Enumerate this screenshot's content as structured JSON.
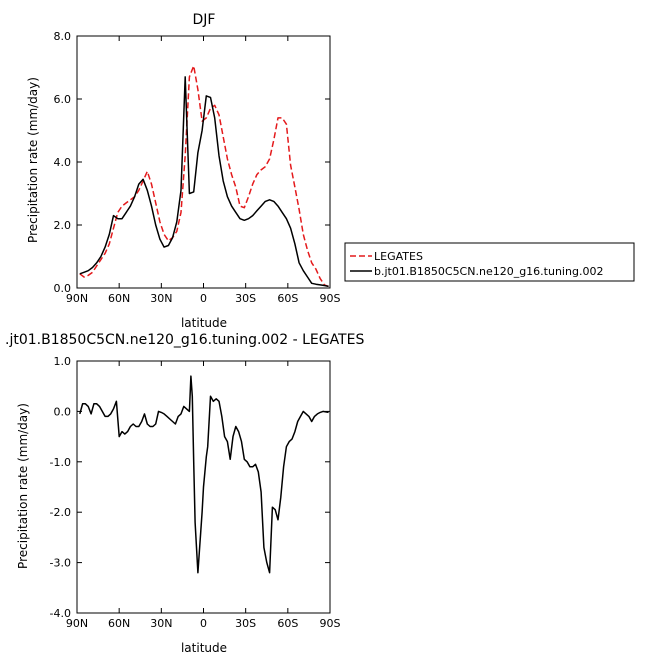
{
  "chart_data": [
    {
      "type": "line",
      "title": "DJF",
      "xlabel": "latitude",
      "ylabel": "Precipitation rate (mm/day)",
      "xlim": [
        90,
        -90
      ],
      "ylim": [
        0,
        8
      ],
      "xticks": [
        90,
        60,
        30,
        0,
        -30,
        -60,
        -90
      ],
      "xtick_labels": [
        "90N",
        "60N",
        "30N",
        "0",
        "30S",
        "60S",
        "90S"
      ],
      "yticks": [
        0,
        2,
        4,
        6,
        8
      ],
      "ytick_labels": [
        "0.0",
        "2.0",
        "4.0",
        "6.0",
        "8.0"
      ],
      "grid": false,
      "legend_position": "right",
      "series": [
        {
          "name": "LEGATES",
          "color": "#e41a1c",
          "dash": "dashed",
          "x": [
            88,
            85,
            82,
            79,
            76,
            73,
            70,
            67,
            64,
            61,
            58,
            55,
            52,
            49,
            46,
            43,
            40,
            37,
            34,
            31,
            28,
            25,
            22,
            19,
            16,
            13,
            10,
            7,
            4,
            1,
            -2,
            -5,
            -8,
            -11,
            -14,
            -17,
            -20,
            -23,
            -26,
            -29,
            -32,
            -35,
            -38,
            -41,
            -44,
            -47,
            -50,
            -53,
            -56,
            -59,
            -62,
            -65,
            -68,
            -71,
            -74,
            -77,
            -80,
            -83,
            -86,
            -89
          ],
          "values": [
            0.45,
            0.35,
            0.4,
            0.5,
            0.7,
            0.9,
            1.1,
            1.4,
            1.9,
            2.4,
            2.6,
            2.7,
            2.8,
            2.9,
            3.1,
            3.4,
            3.7,
            3.3,
            2.7,
            2.1,
            1.7,
            1.5,
            1.6,
            1.8,
            2.4,
            4.2,
            6.7,
            7.05,
            6.3,
            5.3,
            5.4,
            5.7,
            5.8,
            5.5,
            4.8,
            4.1,
            3.6,
            3.2,
            2.6,
            2.55,
            2.9,
            3.3,
            3.6,
            3.75,
            3.85,
            4.1,
            4.7,
            5.4,
            5.4,
            5.2,
            3.9,
            3.2,
            2.5,
            1.7,
            1.2,
            0.8,
            0.6,
            0.3,
            0.1,
            0.05
          ]
        },
        {
          "name": "b.jt01.B1850C5CN.ne120_g16.tuning.002",
          "color": "#000000",
          "dash": "solid",
          "x": [
            88,
            85,
            82,
            79,
            76,
            73,
            70,
            67,
            64,
            61,
            58,
            55,
            52,
            49,
            46,
            43,
            40,
            37,
            34,
            31,
            28,
            25,
            22,
            19,
            16,
            13,
            10,
            7,
            4,
            1,
            -2,
            -5,
            -8,
            -11,
            -14,
            -17,
            -20,
            -23,
            -26,
            -29,
            -32,
            -35,
            -38,
            -41,
            -44,
            -47,
            -50,
            -53,
            -56,
            -59,
            -62,
            -65,
            -68,
            -71,
            -74,
            -77,
            -80,
            -83,
            -86,
            -89
          ],
          "values": [
            0.45,
            0.5,
            0.55,
            0.65,
            0.8,
            1.0,
            1.3,
            1.7,
            2.3,
            2.2,
            2.2,
            2.4,
            2.6,
            2.9,
            3.3,
            3.45,
            3.1,
            2.6,
            2.0,
            1.55,
            1.3,
            1.35,
            1.6,
            2.1,
            3.1,
            6.7,
            3.0,
            3.05,
            4.3,
            5.0,
            6.1,
            6.05,
            5.4,
            4.2,
            3.4,
            2.9,
            2.6,
            2.4,
            2.2,
            2.15,
            2.2,
            2.3,
            2.45,
            2.6,
            2.75,
            2.8,
            2.75,
            2.6,
            2.4,
            2.2,
            1.9,
            1.4,
            0.8,
            0.55,
            0.35,
            0.15,
            0.12,
            0.1,
            0.08,
            0.05
          ]
        }
      ]
    },
    {
      "type": "line",
      "title": ".jt01.B1850C5CN.ne120_g16.tuning.002 - LEGATES",
      "xlabel": "latitude",
      "ylabel": "Precipitation rate (mm/day)",
      "xlim": [
        90,
        -90
      ],
      "ylim": [
        -4,
        1
      ],
      "xticks": [
        90,
        60,
        30,
        0,
        -30,
        -60,
        -90
      ],
      "xtick_labels": [
        "90N",
        "60N",
        "30N",
        "0",
        "30S",
        "60S",
        "90S"
      ],
      "yticks": [
        -4,
        -3,
        -2,
        -1,
        0,
        1
      ],
      "ytick_labels": [
        "-4.0",
        "-3.0",
        "-2.0",
        "-1.0",
        "0.0",
        "1.0"
      ],
      "grid": false,
      "series": [
        {
          "name": "",
          "color": "#000000",
          "dash": "solid",
          "x": [
            88,
            86,
            84,
            82,
            80,
            78,
            76,
            74,
            72,
            70,
            68,
            66,
            64,
            62,
            60,
            58,
            56,
            54,
            52,
            50,
            48,
            46,
            44,
            42,
            40,
            38,
            36,
            34,
            32,
            30,
            28,
            26,
            24,
            22,
            20,
            18,
            16,
            14,
            12,
            10,
            9,
            8,
            7,
            6,
            5,
            4,
            3,
            2,
            1,
            0,
            -1,
            -2,
            -3,
            -5,
            -7,
            -9,
            -11,
            -13,
            -15,
            -17,
            -19,
            -21,
            -23,
            -25,
            -27,
            -29,
            -31,
            -33,
            -35,
            -37,
            -39,
            -41,
            -43,
            -45,
            -47,
            -49,
            -51,
            -53,
            -55,
            -57,
            -59,
            -61,
            -63,
            -65,
            -67,
            -69,
            -71,
            -73,
            -75,
            -77,
            -79,
            -81,
            -83,
            -85,
            -87,
            -89
          ],
          "values": [
            -0.05,
            0.15,
            0.15,
            0.1,
            -0.05,
            0.15,
            0.15,
            0.1,
            0.0,
            -0.1,
            -0.1,
            -0.05,
            0.05,
            0.2,
            -0.5,
            -0.4,
            -0.45,
            -0.4,
            -0.3,
            -0.25,
            -0.3,
            -0.3,
            -0.2,
            -0.05,
            -0.25,
            -0.3,
            -0.3,
            -0.25,
            0.0,
            -0.02,
            -0.05,
            -0.1,
            -0.15,
            -0.2,
            -0.25,
            -0.1,
            -0.05,
            0.1,
            0.05,
            0.0,
            0.7,
            0.3,
            -1.0,
            -2.2,
            -2.7,
            -3.2,
            -2.8,
            -2.4,
            -2.0,
            -1.5,
            -1.2,
            -0.9,
            -0.7,
            0.3,
            0.2,
            0.25,
            0.2,
            -0.1,
            -0.5,
            -0.6,
            -0.95,
            -0.5,
            -0.3,
            -0.4,
            -0.6,
            -0.95,
            -1.0,
            -1.1,
            -1.1,
            -1.05,
            -1.2,
            -1.6,
            -2.7,
            -3.0,
            -3.2,
            -1.9,
            -1.95,
            -2.15,
            -1.7,
            -1.1,
            -0.7,
            -0.6,
            -0.55,
            -0.4,
            -0.2,
            -0.1,
            0.0,
            -0.05,
            -0.1,
            -0.2,
            -0.1,
            -0.05,
            -0.02,
            0.0,
            -0.01,
            -0.02
          ]
        }
      ]
    }
  ]
}
